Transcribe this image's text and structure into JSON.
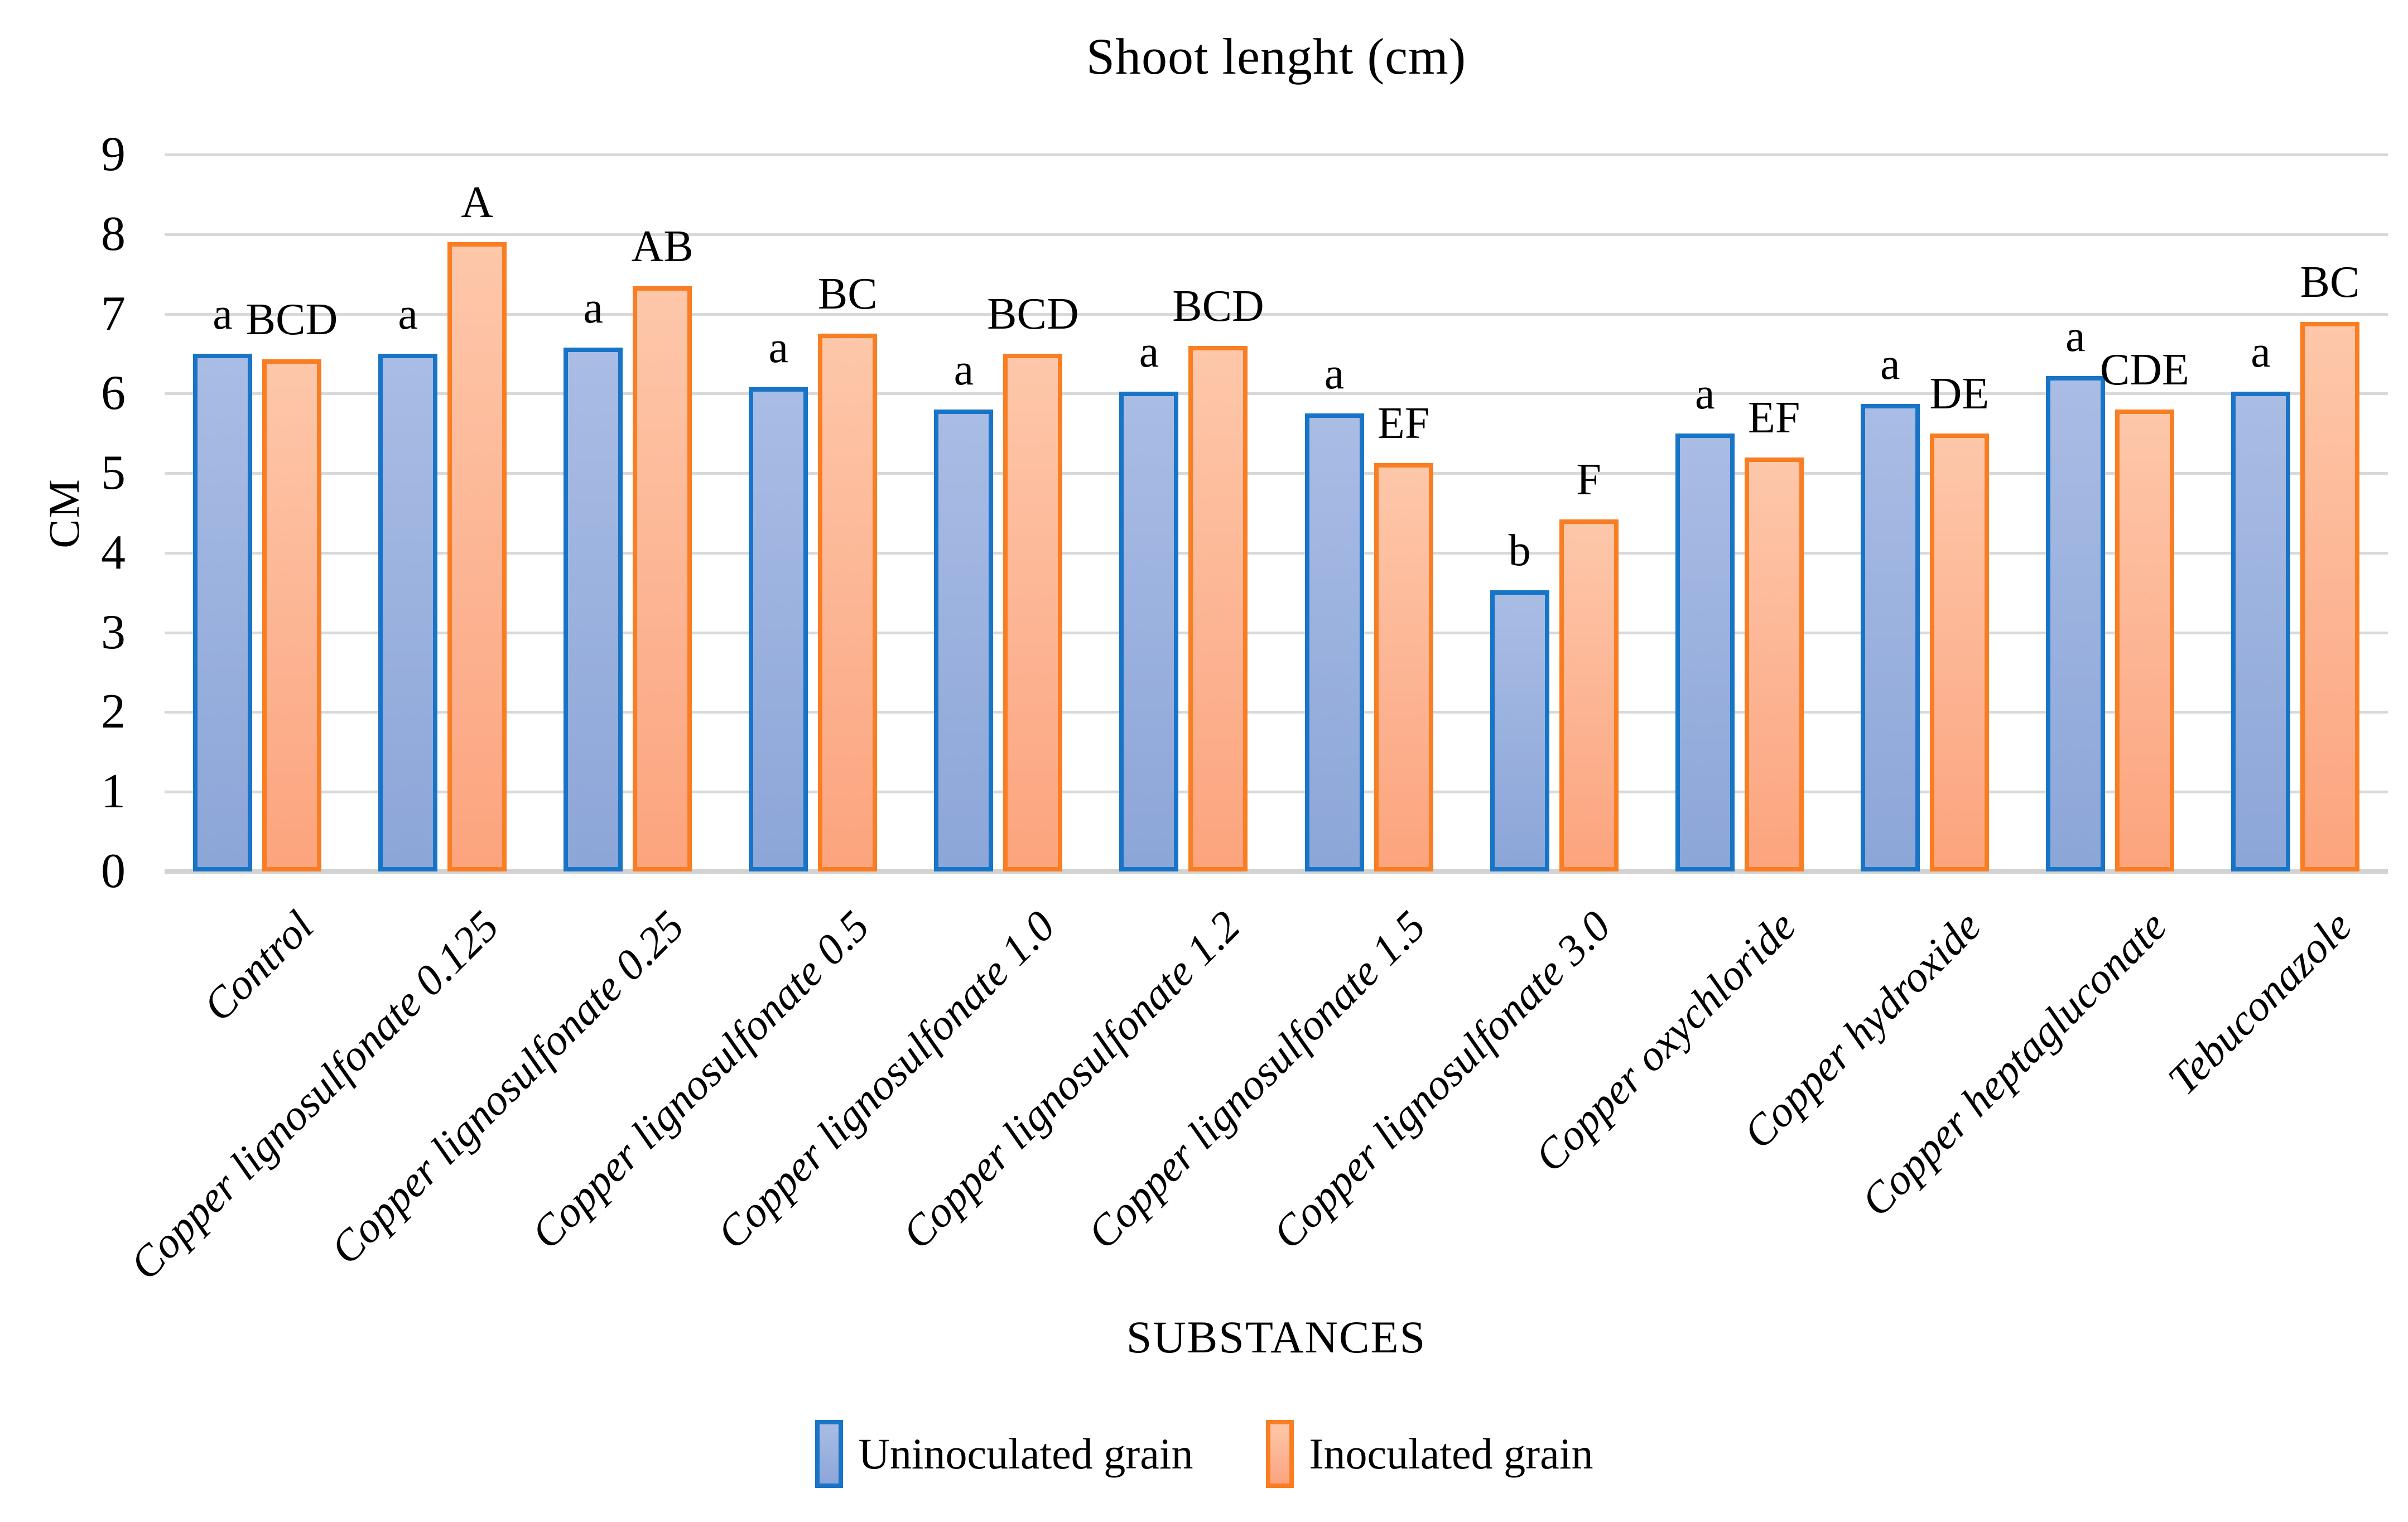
{
  "title": "Shoot lenght (cm)",
  "y_axis": {
    "title": "CM",
    "ticks": [
      "9",
      "8",
      "7",
      "6",
      "5",
      "4",
      "3",
      "2",
      "1",
      "0"
    ]
  },
  "x_axis": {
    "title": "SUBSTANCES"
  },
  "legend": {
    "items": [
      {
        "label": "Uninoculated grain",
        "swatch": "blue"
      },
      {
        "label": "Inoculated grain",
        "swatch": "orange"
      }
    ]
  },
  "colors": {
    "blue_border": "#1874c6",
    "blue_fill_top": "#a9bce4",
    "blue_fill_bottom": "#8ca6d8",
    "orange_border": "#f97e23",
    "orange_fill_top": "#fdc7aa",
    "orange_fill_bottom": "#fca47e",
    "gridline": "#d9d9d9",
    "text": "#000000"
  },
  "chart_data": {
    "type": "bar",
    "title": "Shoot lenght (cm)",
    "xlabel": "SUBSTANCES",
    "ylabel": "CM",
    "ylim": [
      0,
      9
    ],
    "grid": true,
    "legend_position": "bottom",
    "categories": [
      "Control",
      "Copper lignosulfonate 0.125",
      "Copper lignosulfonate 0.25",
      "Copper lignosulfonate 0.5",
      "Copper lignosulfonate 1.0",
      "Copper lignosulfonate 1.2",
      "Copper lignosulfonate 1.5",
      "Copper lignosulfonate 3.0",
      "Copper oxychloride",
      "Copper hydroxide",
      "Copper heptagluconate",
      "Tebuconazole"
    ],
    "series": [
      {
        "name": "Uninoculated grain",
        "values": [
          6.5,
          6.5,
          6.58,
          6.08,
          5.8,
          6.02,
          5.75,
          3.53,
          5.5,
          5.87,
          6.22,
          6.02
        ],
        "sig_letters": [
          "a",
          "a",
          "a",
          "a",
          "a",
          "a",
          "a",
          "b",
          "a",
          "a",
          "a",
          "a"
        ]
      },
      {
        "name": "Inoculated grain",
        "values": [
          6.43,
          7.9,
          7.35,
          6.75,
          6.5,
          6.6,
          5.13,
          4.42,
          5.2,
          5.5,
          5.8,
          6.9
        ],
        "sig_letters": [
          "BCD",
          "A",
          "AB",
          "BC",
          "BCD",
          "BCD",
          "EF",
          "F",
          "EF",
          "DE",
          "CDE",
          "BC"
        ]
      }
    ]
  }
}
